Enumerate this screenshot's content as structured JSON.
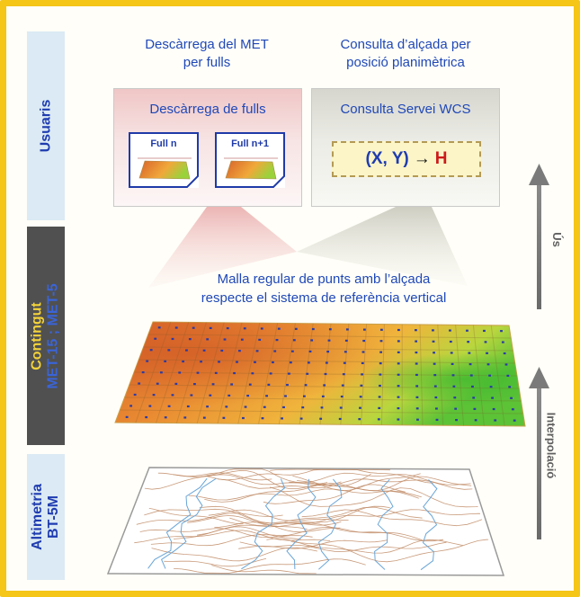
{
  "bands": {
    "users": "Usuaris",
    "content_title": "Contingut",
    "content_models": "MET-15 ; MET-5",
    "altimetry": "Altimetria",
    "altimetry_source": "BT-5M"
  },
  "captions": {
    "download_line1": "Descàrrega del MET",
    "download_line2": "per fulls",
    "query_line1": "Consulta d’alçada per",
    "query_line2": "posició planimètrica"
  },
  "cards": {
    "download": {
      "title": "Descàrrega de fulls",
      "sheets": [
        {
          "label": "Full n"
        },
        {
          "label": "Full n+1"
        }
      ]
    },
    "wcs": {
      "title": "Consulta Servei WCS",
      "input": "(X, Y)",
      "arrow": "→",
      "output": "H"
    }
  },
  "grid": {
    "caption_line1": "Malla regular de punts amb l’alçada",
    "caption_line2": "respecte el sistema de referència vertical"
  },
  "arrows": {
    "up": "Ús",
    "down": "Interpolació"
  },
  "colors": {
    "frame": "#f5c518",
    "band_light": "#dbeaf4",
    "band_dark": "#505050",
    "title_blue": "#1f48b8",
    "contour": "#c08a64",
    "stream": "#6aa6d8",
    "grid_point": "#2a3aa8"
  }
}
